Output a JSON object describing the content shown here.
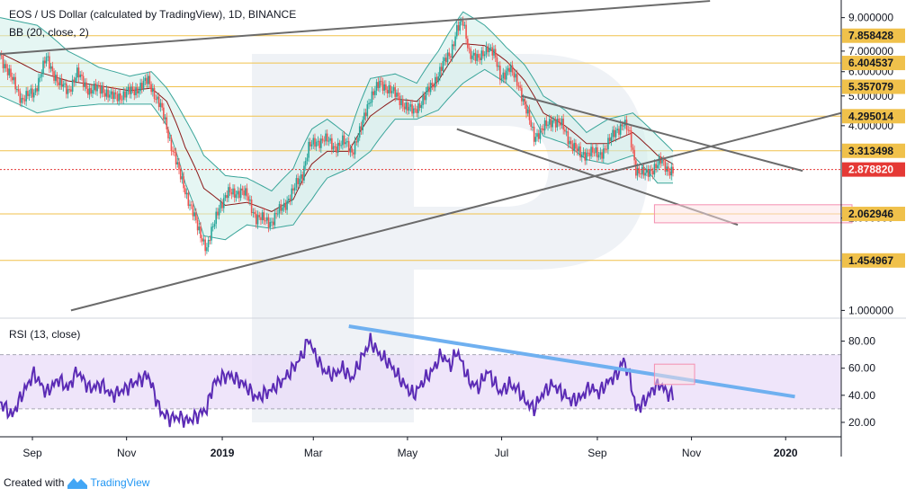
{
  "title": "EOS / US Dollar (calculated by TradingView), 1D, BINANCE",
  "indicator_bb": "BB (20, close, 2)",
  "indicator_rsi": "RSI (13, close)",
  "footer": {
    "prefix": "Created with",
    "brand": "TradingView"
  },
  "colors": {
    "bull": "#26a69a",
    "bear": "#ef5350",
    "level": "#f0c14b",
    "rsi": "#5b2bb5",
    "rsi_band": "#eadcf8",
    "trend": "#6b6b6b",
    "rsi_trend": "#6fb0f0",
    "bb": "#3aa59a",
    "basis": "#8b1a1a",
    "current": "#e53935"
  },
  "chart_data": [
    {
      "type": "candlestick",
      "title": "EOS / US Dollar (calculated by TradingView), 1D, BINANCE",
      "y_scale": "log",
      "ylim": [
        0.95,
        10.0
      ],
      "price_ticks": [
        "9.000000",
        "7.000000",
        "6.000000",
        "5.000000",
        "4.000000",
        "2.000000",
        "1.000000"
      ],
      "levels": [
        {
          "value": 7.858428,
          "label": "7.858428"
        },
        {
          "value": 6.404537,
          "label": "6.404537"
        },
        {
          "value": 5.357079,
          "label": "5.357079"
        },
        {
          "value": 4.295014,
          "label": "4.295014"
        },
        {
          "value": 3.313498,
          "label": "3.313498"
        },
        {
          "value": 2.062946,
          "label": "2.062946"
        },
        {
          "value": 1.454967,
          "label": "1.454967"
        }
      ],
      "current_price": {
        "value": 2.87882,
        "label": "2.878820"
      },
      "x_ticks": [
        "Sep",
        "Nov",
        "2019",
        "Mar",
        "May",
        "Jul",
        "Sep",
        "Nov",
        "2020"
      ],
      "x_tick_index": [
        21,
        82,
        144,
        203,
        264,
        325,
        387,
        448,
        509
      ],
      "x_range": [
        0,
        545
      ],
      "close_path": [
        [
          0,
          6.8
        ],
        [
          8,
          5.6
        ],
        [
          14,
          4.9
        ],
        [
          22,
          5.1
        ],
        [
          30,
          6.6
        ],
        [
          38,
          5.5
        ],
        [
          44,
          5.2
        ],
        [
          50,
          5.9
        ],
        [
          58,
          5.2
        ],
        [
          66,
          5.3
        ],
        [
          72,
          4.95
        ],
        [
          80,
          5.05
        ],
        [
          88,
          5.25
        ],
        [
          96,
          5.6
        ],
        [
          104,
          4.6
        ],
        [
          110,
          3.6
        ],
        [
          116,
          2.8
        ],
        [
          122,
          2.3
        ],
        [
          128,
          1.85
        ],
        [
          134,
          1.6
        ],
        [
          138,
          1.85
        ],
        [
          142,
          2.2
        ],
        [
          148,
          2.4
        ],
        [
          156,
          2.45
        ],
        [
          160,
          2.35
        ],
        [
          166,
          2.0
        ],
        [
          176,
          1.95
        ],
        [
          184,
          2.2
        ],
        [
          190,
          2.45
        ],
        [
          196,
          2.8
        ],
        [
          200,
          3.4
        ],
        [
          204,
          3.5
        ],
        [
          210,
          3.65
        ],
        [
          216,
          3.4
        ],
        [
          222,
          3.55
        ],
        [
          228,
          3.3
        ],
        [
          234,
          3.9
        ],
        [
          240,
          5.0
        ],
        [
          246,
          5.45
        ],
        [
          252,
          5.3
        ],
        [
          258,
          4.9
        ],
        [
          264,
          4.6
        ],
        [
          268,
          4.4
        ],
        [
          274,
          4.9
        ],
        [
          280,
          5.4
        ],
        [
          286,
          6.2
        ],
        [
          292,
          6.9
        ],
        [
          296,
          8.3
        ],
        [
          300,
          8.6
        ],
        [
          304,
          7.0
        ],
        [
          310,
          6.5
        ],
        [
          316,
          7.3
        ],
        [
          320,
          6.8
        ],
        [
          324,
          5.8
        ],
        [
          330,
          6.1
        ],
        [
          336,
          5.5
        ],
        [
          340,
          4.6
        ],
        [
          346,
          3.7
        ],
        [
          352,
          3.9
        ],
        [
          358,
          4.2
        ],
        [
          364,
          4.0
        ],
        [
          370,
          3.5
        ],
        [
          376,
          3.2
        ],
        [
          382,
          3.3
        ],
        [
          388,
          3.2
        ],
        [
          394,
          3.5
        ],
        [
          400,
          3.9
        ],
        [
          404,
          4.1
        ],
        [
          408,
          3.7
        ],
        [
          412,
          2.9
        ],
        [
          418,
          2.75
        ],
        [
          424,
          2.95
        ],
        [
          428,
          3.05
        ],
        [
          432,
          2.9
        ],
        [
          436,
          2.87
        ]
      ],
      "bollinger": {
        "upper": [
          [
            0,
            9.0
          ],
          [
            24,
            8.5
          ],
          [
            44,
            7.0
          ],
          [
            64,
            6.2
          ],
          [
            84,
            5.8
          ],
          [
            98,
            6.0
          ],
          [
            108,
            5.3
          ],
          [
            120,
            4.2
          ],
          [
            132,
            3.2
          ],
          [
            146,
            2.75
          ],
          [
            160,
            2.7
          ],
          [
            176,
            2.45
          ],
          [
            190,
            2.9
          ],
          [
            202,
            3.9
          ],
          [
            212,
            4.2
          ],
          [
            226,
            3.7
          ],
          [
            240,
            5.7
          ],
          [
            256,
            5.9
          ],
          [
            270,
            5.5
          ],
          [
            284,
            7.0
          ],
          [
            300,
            9.4
          ],
          [
            314,
            8.5
          ],
          [
            328,
            7.2
          ],
          [
            340,
            6.3
          ],
          [
            352,
            5.0
          ],
          [
            366,
            4.5
          ],
          [
            380,
            3.8
          ],
          [
            394,
            4.2
          ],
          [
            410,
            4.4
          ],
          [
            426,
            3.7
          ],
          [
            436,
            3.3
          ]
        ],
        "basis": [
          [
            0,
            6.9
          ],
          [
            24,
            6.0
          ],
          [
            44,
            5.6
          ],
          [
            64,
            5.4
          ],
          [
            84,
            5.2
          ],
          [
            98,
            5.3
          ],
          [
            108,
            4.8
          ],
          [
            120,
            3.4
          ],
          [
            132,
            2.5
          ],
          [
            146,
            2.2
          ],
          [
            160,
            2.25
          ],
          [
            176,
            2.1
          ],
          [
            190,
            2.3
          ],
          [
            202,
            3.0
          ],
          [
            212,
            3.3
          ],
          [
            226,
            3.3
          ],
          [
            240,
            4.3
          ],
          [
            256,
            4.9
          ],
          [
            270,
            4.8
          ],
          [
            284,
            5.6
          ],
          [
            300,
            7.4
          ],
          [
            314,
            7.3
          ],
          [
            328,
            6.5
          ],
          [
            340,
            5.6
          ],
          [
            352,
            4.4
          ],
          [
            366,
            4.0
          ],
          [
            380,
            3.5
          ],
          [
            394,
            3.5
          ],
          [
            410,
            3.8
          ],
          [
            426,
            3.2
          ],
          [
            436,
            3.0
          ]
        ],
        "lower": [
          [
            0,
            5.0
          ],
          [
            24,
            4.4
          ],
          [
            44,
            4.6
          ],
          [
            64,
            4.7
          ],
          [
            84,
            4.7
          ],
          [
            98,
            4.7
          ],
          [
            108,
            4.0
          ],
          [
            120,
            2.6
          ],
          [
            132,
            1.75
          ],
          [
            146,
            1.7
          ],
          [
            160,
            1.9
          ],
          [
            176,
            1.85
          ],
          [
            190,
            1.9
          ],
          [
            202,
            2.3
          ],
          [
            212,
            2.7
          ],
          [
            226,
            2.9
          ],
          [
            240,
            3.3
          ],
          [
            256,
            4.2
          ],
          [
            270,
            4.2
          ],
          [
            284,
            4.5
          ],
          [
            300,
            5.5
          ],
          [
            314,
            6.1
          ],
          [
            328,
            5.5
          ],
          [
            340,
            4.8
          ],
          [
            352,
            3.7
          ],
          [
            366,
            3.5
          ],
          [
            380,
            3.1
          ],
          [
            394,
            3.0
          ],
          [
            410,
            3.2
          ],
          [
            426,
            2.6
          ],
          [
            436,
            2.6
          ]
        ]
      },
      "trendlines": [
        {
          "from": [
            0,
            6.85
          ],
          "to": [
            460,
            10.2
          ]
        },
        {
          "from": [
            46,
            1.0
          ],
          "to": [
            545,
            4.4
          ]
        },
        {
          "from": [
            338,
            5.0
          ],
          "to": [
            520,
            2.85
          ]
        },
        {
          "from": [
            296,
            3.9
          ],
          "to": [
            478,
            1.9
          ]
        }
      ],
      "target_box": {
        "x": [
          424,
          552
        ],
        "y": [
          1.93,
          2.21
        ]
      }
    },
    {
      "type": "line",
      "title": "RSI (13, close)",
      "ylim": [
        10,
        95
      ],
      "y_ticks": [
        80,
        60,
        40,
        20
      ],
      "band": [
        30,
        70
      ],
      "x_range": [
        0,
        545
      ],
      "rsi_path": [
        [
          0,
          35
        ],
        [
          8,
          25
        ],
        [
          14,
          40
        ],
        [
          22,
          56
        ],
        [
          30,
          42
        ],
        [
          38,
          52
        ],
        [
          44,
          45
        ],
        [
          50,
          58
        ],
        [
          58,
          45
        ],
        [
          66,
          48
        ],
        [
          72,
          40
        ],
        [
          80,
          44
        ],
        [
          88,
          50
        ],
        [
          96,
          55
        ],
        [
          104,
          28
        ],
        [
          110,
          23
        ],
        [
          116,
          24
        ],
        [
          122,
          21
        ],
        [
          128,
          25
        ],
        [
          134,
          30
        ],
        [
          138,
          48
        ],
        [
          142,
          52
        ],
        [
          148,
          55
        ],
        [
          156,
          50
        ],
        [
          160,
          46
        ],
        [
          166,
          38
        ],
        [
          176,
          44
        ],
        [
          184,
          52
        ],
        [
          190,
          60
        ],
        [
          196,
          70
        ],
        [
          200,
          82
        ],
        [
          204,
          70
        ],
        [
          210,
          58
        ],
        [
          216,
          55
        ],
        [
          222,
          60
        ],
        [
          228,
          52
        ],
        [
          234,
          67
        ],
        [
          240,
          80
        ],
        [
          246,
          70
        ],
        [
          252,
          64
        ],
        [
          258,
          54
        ],
        [
          264,
          45
        ],
        [
          268,
          40
        ],
        [
          274,
          50
        ],
        [
          280,
          58
        ],
        [
          286,
          70
        ],
        [
          292,
          62
        ],
        [
          296,
          73
        ],
        [
          300,
          62
        ],
        [
          304,
          50
        ],
        [
          310,
          46
        ],
        [
          316,
          58
        ],
        [
          320,
          50
        ],
        [
          324,
          42
        ],
        [
          330,
          48
        ],
        [
          336,
          44
        ],
        [
          340,
          36
        ],
        [
          346,
          30
        ],
        [
          352,
          42
        ],
        [
          358,
          48
        ],
        [
          364,
          42
        ],
        [
          370,
          36
        ],
        [
          376,
          38
        ],
        [
          382,
          46
        ],
        [
          388,
          42
        ],
        [
          394,
          50
        ],
        [
          400,
          56
        ],
        [
          404,
          66
        ],
        [
          408,
          54
        ],
        [
          412,
          30
        ],
        [
          418,
          36
        ],
        [
          424,
          46
        ],
        [
          428,
          48
        ],
        [
          432,
          42
        ],
        [
          436,
          40
        ]
      ],
      "trendline": {
        "from": [
          226,
          91
        ],
        "to": [
          515,
          39
        ]
      },
      "box": {
        "x": [
          424,
          450
        ],
        "y": [
          48,
          63
        ]
      }
    }
  ]
}
